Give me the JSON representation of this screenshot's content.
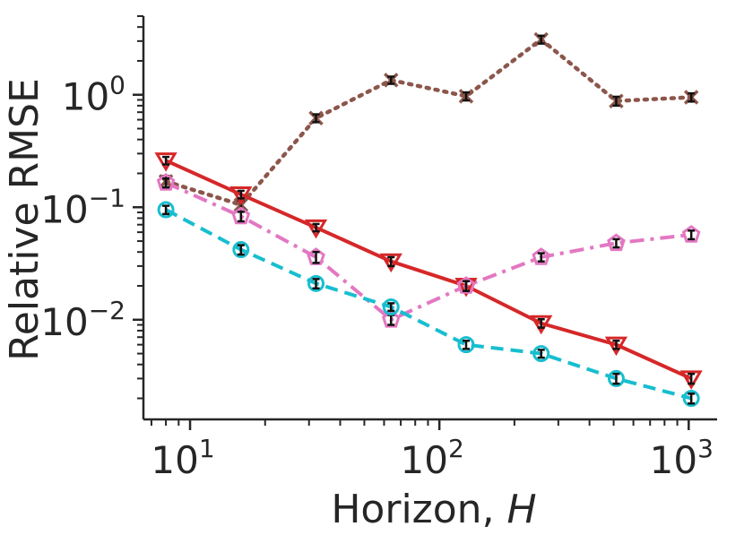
{
  "chart_data": {
    "type": "line",
    "xlabel": "Horizon, ",
    "xlabel_var": "H",
    "ylabel": "Relative RMSE",
    "xscale": "log",
    "yscale": "log",
    "xlim": [
      6.5,
      1300
    ],
    "ylim": [
      0.0013,
      5.0
    ],
    "xticks": [
      {
        "value": 10,
        "base": "10",
        "exp": "1"
      },
      {
        "value": 100,
        "base": "10",
        "exp": "2"
      },
      {
        "value": 1000,
        "base": "10",
        "exp": "3"
      }
    ],
    "yticks": [
      {
        "value": 0.01,
        "base": "10",
        "exp": "−2"
      },
      {
        "value": 0.1,
        "base": "10",
        "exp": "−1"
      },
      {
        "value": 1,
        "base": "10",
        "exp": "0"
      }
    ],
    "x": [
      8,
      16,
      32,
      64,
      128,
      256,
      512,
      1024
    ],
    "series": [
      {
        "name": "brown-dotted-x",
        "color": "#8c564b",
        "dash": "dotted",
        "marker": "x",
        "values": [
          0.17,
          0.105,
          0.62,
          1.35,
          0.97,
          3.1,
          0.88,
          0.95
        ],
        "err": [
          0.02,
          0.01,
          0.05,
          0.1,
          0.08,
          0.25,
          0.08,
          0.08
        ]
      },
      {
        "name": "red-solid-triangle",
        "color": "#d62728",
        "dash": "solid",
        "marker": "triangle-down",
        "values": [
          0.26,
          0.13,
          0.066,
          0.033,
          0.02,
          0.0093,
          0.006,
          0.003
        ],
        "err": [
          0.02,
          0.01,
          0.005,
          0.003,
          0.002,
          0.0008,
          0.0005,
          0.0003
        ]
      },
      {
        "name": "pink-dashdot-pentagon",
        "color": "#e377c2",
        "dash": "dashdot",
        "marker": "pentagon",
        "values": [
          0.165,
          0.083,
          0.036,
          0.01,
          0.02,
          0.036,
          0.048,
          0.057
        ],
        "err": [
          0.015,
          0.008,
          0.004,
          0.001,
          0.002,
          0.003,
          0.004,
          0.005
        ]
      },
      {
        "name": "cyan-dashed-circle",
        "color": "#17becf",
        "dash": "dashed",
        "marker": "circle",
        "values": [
          0.095,
          0.042,
          0.021,
          0.013,
          0.006,
          0.005,
          0.003,
          0.002
        ],
        "err": [
          0.008,
          0.004,
          0.002,
          0.001,
          0.0005,
          0.0004,
          0.0003,
          0.0002
        ]
      }
    ]
  }
}
